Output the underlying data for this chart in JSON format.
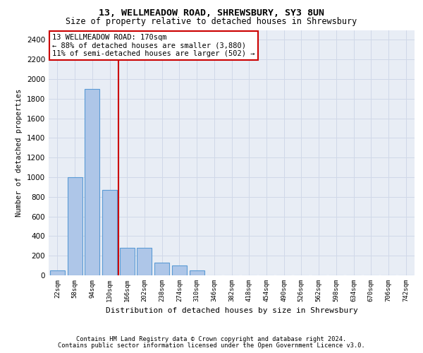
{
  "title1": "13, WELLMEADOW ROAD, SHREWSBURY, SY3 8UN",
  "title2": "Size of property relative to detached houses in Shrewsbury",
  "xlabel": "Distribution of detached houses by size in Shrewsbury",
  "ylabel": "Number of detached properties",
  "annotation_title": "13 WELLMEADOW ROAD: 170sqm",
  "annotation_line2": "← 88% of detached houses are smaller (3,880)",
  "annotation_line3": "11% of semi-detached houses are larger (502) →",
  "footer1": "Contains HM Land Registry data © Crown copyright and database right 2024.",
  "footer2": "Contains public sector information licensed under the Open Government Licence v3.0.",
  "bar_labels": [
    "22sqm",
    "58sqm",
    "94sqm",
    "130sqm",
    "166sqm",
    "202sqm",
    "238sqm",
    "274sqm",
    "310sqm",
    "346sqm",
    "382sqm",
    "418sqm",
    "454sqm",
    "490sqm",
    "526sqm",
    "562sqm",
    "598sqm",
    "634sqm",
    "670sqm",
    "706sqm",
    "742sqm"
  ],
  "bar_values": [
    50,
    1000,
    1900,
    870,
    280,
    280,
    130,
    100,
    50,
    0,
    0,
    0,
    0,
    0,
    0,
    0,
    0,
    0,
    0,
    0,
    0
  ],
  "bar_color": "#aec6e8",
  "bar_edge_color": "#5b9bd5",
  "redline_x": 3.5,
  "highlight_color": "#cc0000",
  "annotation_box_color": "#cc0000",
  "ylim": [
    0,
    2500
  ],
  "yticks": [
    0,
    200,
    400,
    600,
    800,
    1000,
    1200,
    1400,
    1600,
    1800,
    2000,
    2200,
    2400
  ],
  "grid_color": "#d0d8e8",
  "bg_color": "#e8edf5"
}
